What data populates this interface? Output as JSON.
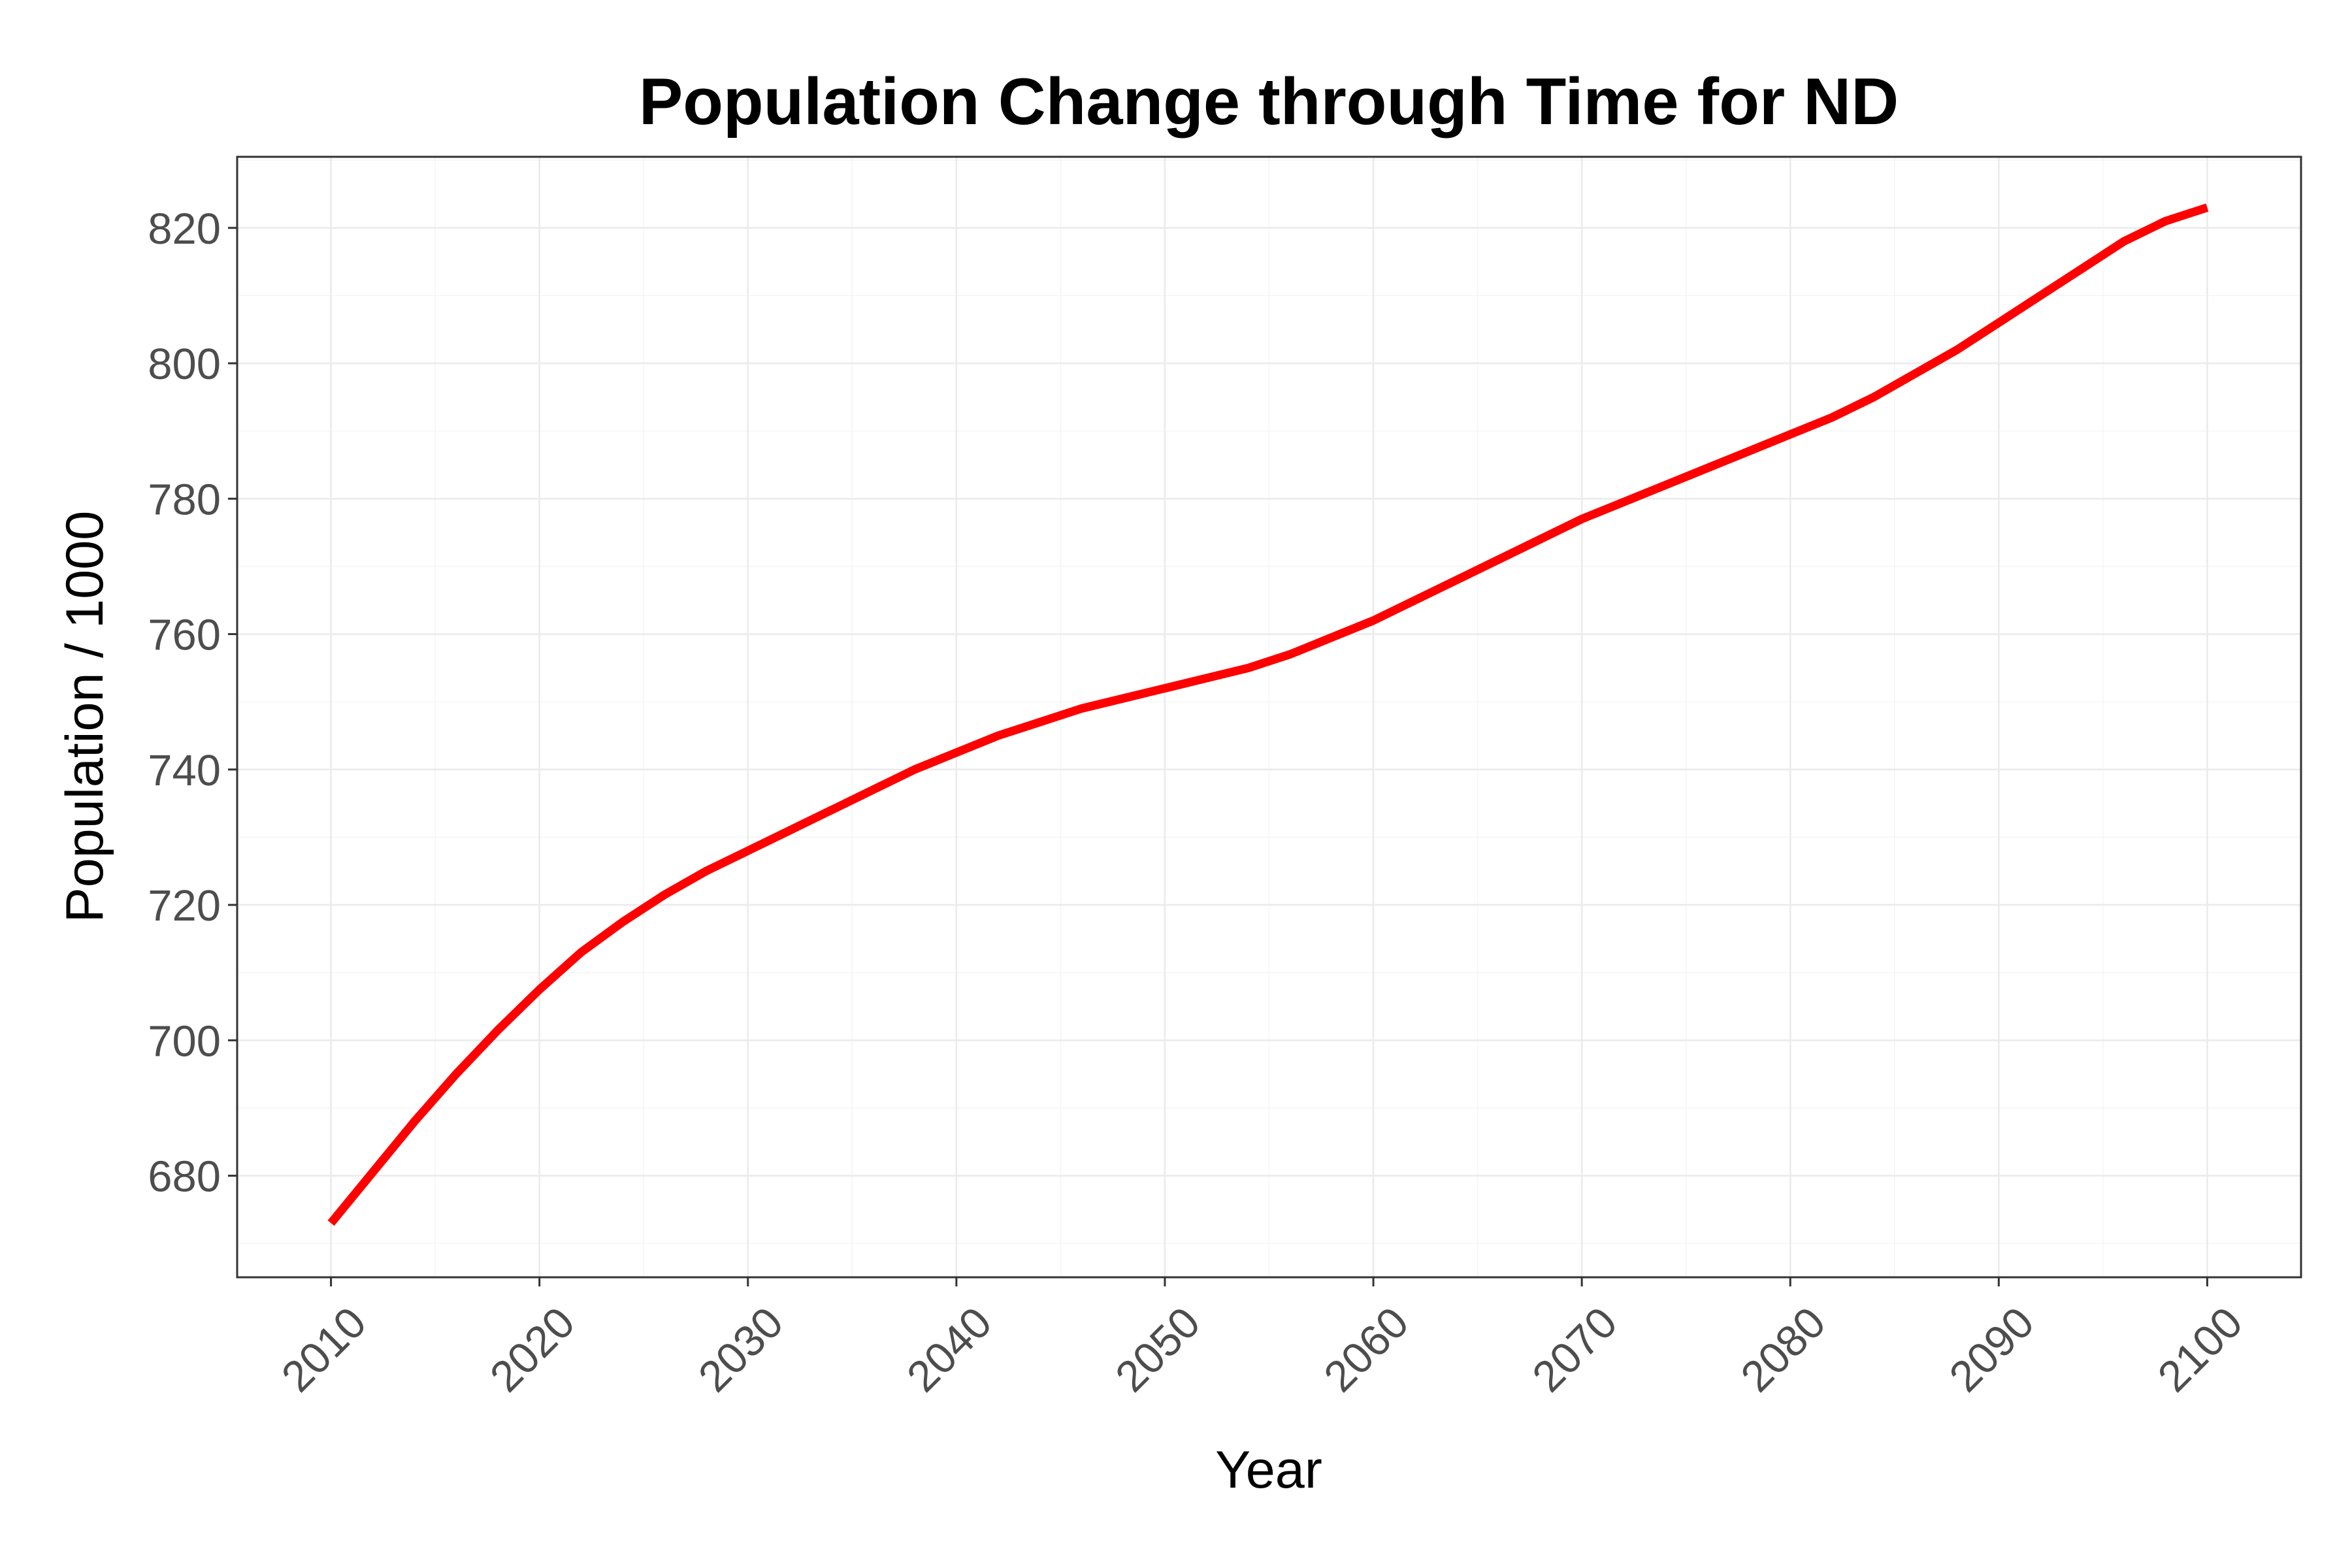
{
  "chart_data": {
    "type": "line",
    "title": "Population Change through Time for ND",
    "xlabel": "Year",
    "ylabel": "Population / 1000",
    "xlim": [
      2005.5,
      2104.5
    ],
    "ylim": [
      665,
      830.5
    ],
    "x_ticks": [
      2010,
      2020,
      2030,
      2040,
      2050,
      2060,
      2070,
      2080,
      2090,
      2100
    ],
    "y_ticks": [
      680,
      700,
      720,
      740,
      760,
      780,
      800,
      820
    ],
    "grid": true,
    "legend": "none",
    "line_color": "#ff0000",
    "series": [
      {
        "x": [
          2010,
          2012,
          2014,
          2016,
          2018,
          2020,
          2022,
          2024,
          2026,
          2028,
          2030,
          2032,
          2034,
          2036,
          2038,
          2040,
          2042,
          2044,
          2046,
          2048,
          2050,
          2052,
          2054,
          2056,
          2058,
          2060,
          2062,
          2064,
          2066,
          2068,
          2070,
          2072,
          2074,
          2076,
          2078,
          2080,
          2082,
          2084,
          2086,
          2088,
          2090,
          2092,
          2094,
          2096,
          2098,
          2100
        ],
        "y": [
          673,
          680.5,
          688,
          695,
          701.5,
          707.5,
          713,
          717.5,
          721.5,
          725,
          728,
          731,
          734,
          737,
          740,
          742.5,
          745,
          747,
          749,
          750.5,
          752,
          753.5,
          755,
          757,
          759.5,
          762,
          765,
          768,
          771,
          774,
          777,
          779.5,
          782,
          784.5,
          787,
          789.5,
          792,
          795,
          798.5,
          802,
          806,
          810,
          814,
          818,
          821,
          823
        ]
      }
    ]
  }
}
